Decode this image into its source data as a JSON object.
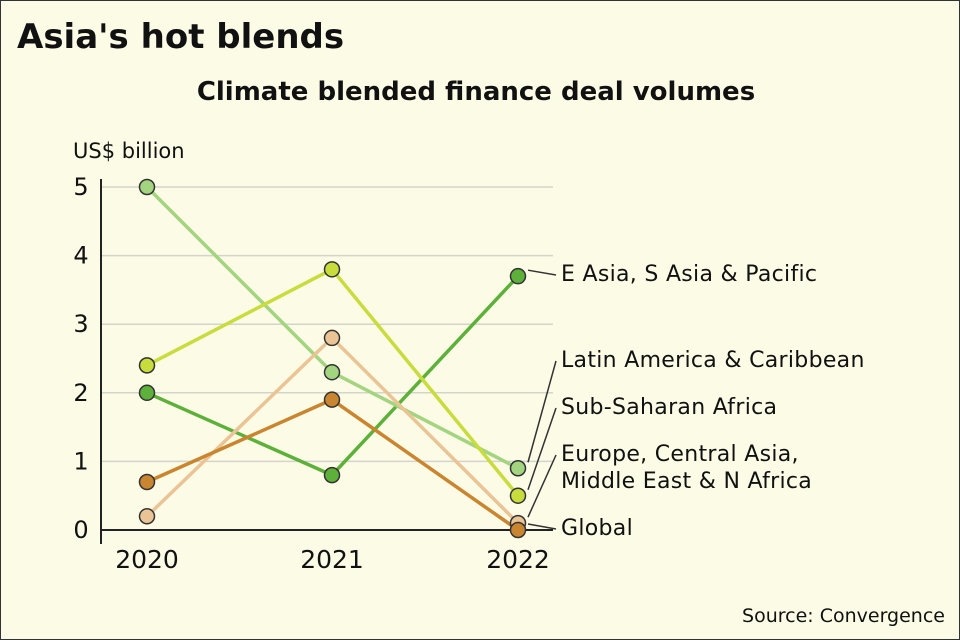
{
  "chart_data": {
    "type": "line",
    "title": "Asia's hot blends",
    "subtitle": "Climate blended finance deal volumes",
    "y_label": "US$ billion",
    "source": "Source: Convergence",
    "categories": [
      "2020",
      "2021",
      "2022"
    ],
    "ylim": [
      0,
      5
    ],
    "yticks": [
      0,
      1,
      2,
      3,
      4,
      5
    ],
    "grid": true,
    "series": [
      {
        "name": "E Asia, S Asia & Pacific",
        "color": "#5db13a",
        "values": [
          2.0,
          0.8,
          3.7
        ]
      },
      {
        "name": "Latin America & Caribbean",
        "color": "#a3d47f",
        "values": [
          5.0,
          2.3,
          0.9
        ]
      },
      {
        "name": "Sub-Saharan Africa",
        "color": "#c8dc3c",
        "values": [
          2.4,
          3.8,
          0.5
        ]
      },
      {
        "name": "Europe, Central Asia, Middle East & N Africa",
        "color": "#ebc496",
        "values": [
          0.2,
          2.8,
          0.1
        ]
      },
      {
        "name": "Global",
        "color": "#c9852f",
        "values": [
          0.7,
          1.9,
          0.0
        ]
      }
    ]
  }
}
